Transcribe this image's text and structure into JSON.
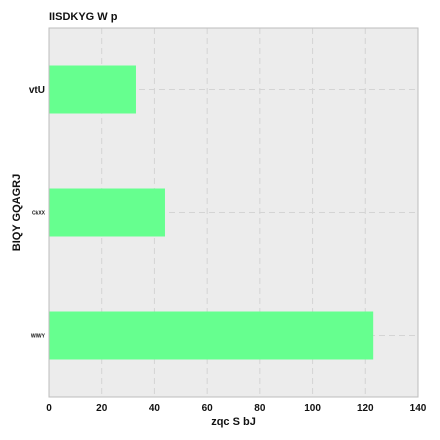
{
  "chart_data": {
    "type": "bar",
    "orientation": "horizontal",
    "title": "IISDKYG W p",
    "xlabel": "zqc S bJ",
    "ylabel": "BIQY GQAGRJ",
    "categories": [
      "vtU",
      "CkXX",
      "WIWY"
    ],
    "values": [
      33,
      44,
      123
    ],
    "xlim": [
      0,
      140
    ],
    "xticks": [
      0,
      20,
      40,
      60,
      80,
      100,
      120,
      140
    ],
    "grid": true,
    "legend": "none",
    "colors": {
      "bar": "#66ff8f",
      "plot_background": "#ececec",
      "grid": "#d4d4d4",
      "axis": "#bdbdbd"
    }
  }
}
